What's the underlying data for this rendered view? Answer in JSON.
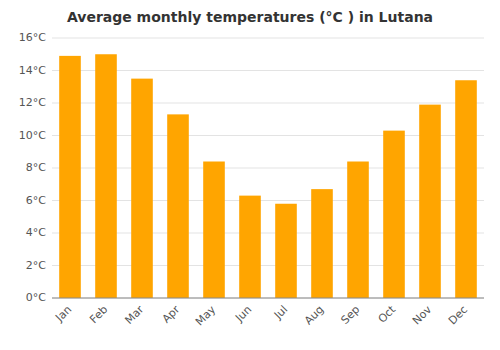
{
  "chart_data": {
    "type": "bar",
    "title": "Average monthly temperatures (°C ) in Lutana",
    "categories": [
      "Jan",
      "Feb",
      "Mar",
      "Apr",
      "May",
      "Jun",
      "Jul",
      "Aug",
      "Sep",
      "Oct",
      "Nov",
      "Dec"
    ],
    "values": [
      14.9,
      15.0,
      13.5,
      11.3,
      8.4,
      6.3,
      5.8,
      6.7,
      8.4,
      10.3,
      11.9,
      13.4
    ],
    "color": "#FFA500",
    "ylim": [
      0,
      16
    ],
    "yticks": [
      {
        "value": 0,
        "label": "0°C"
      },
      {
        "value": 2,
        "label": "2°C"
      },
      {
        "value": 4,
        "label": "4°C"
      },
      {
        "value": 6,
        "label": "6°C"
      },
      {
        "value": 8,
        "label": "8°C"
      },
      {
        "value": 10,
        "label": "10°C"
      },
      {
        "value": 12,
        "label": "12°C"
      },
      {
        "value": 14,
        "label": "14°C"
      },
      {
        "value": 16,
        "label": "16°C"
      }
    ],
    "grid": true
  }
}
